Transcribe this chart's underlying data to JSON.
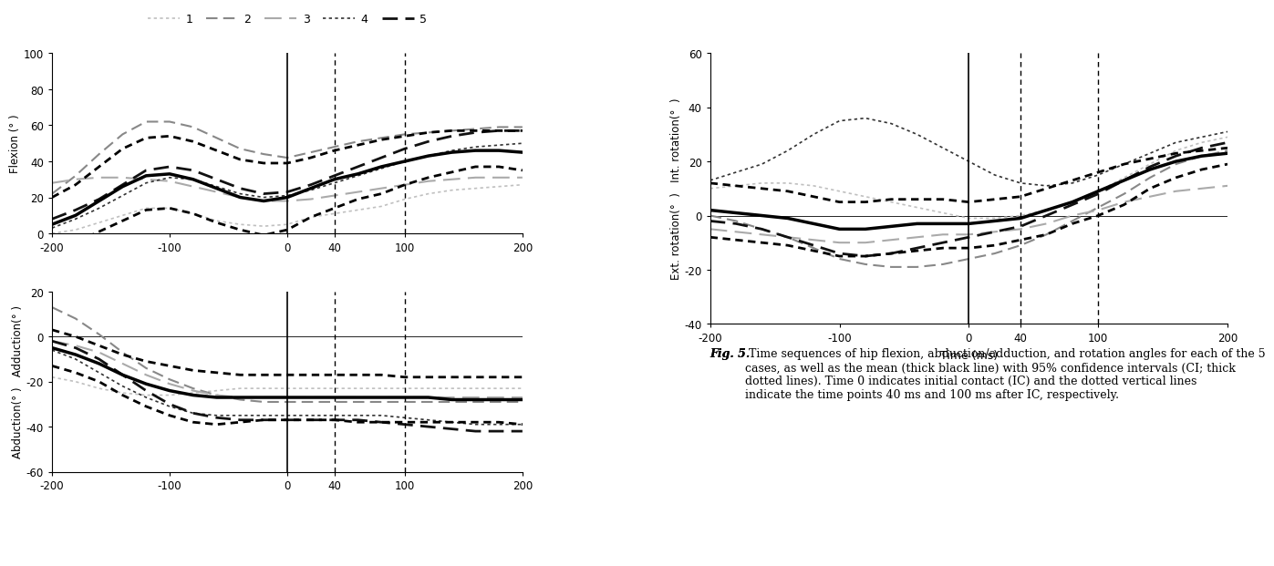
{
  "x": [
    -200,
    -180,
    -160,
    -140,
    -120,
    -100,
    -80,
    -60,
    -40,
    -20,
    0,
    20,
    40,
    60,
    80,
    100,
    120,
    140,
    160,
    180,
    200
  ],
  "flexion_mean": [
    5,
    10,
    18,
    26,
    32,
    33,
    30,
    25,
    20,
    18,
    20,
    25,
    30,
    33,
    37,
    40,
    43,
    45,
    46,
    46,
    45
  ],
  "flexion_ci_upper": [
    20,
    27,
    37,
    47,
    53,
    54,
    51,
    46,
    41,
    39,
    39,
    42,
    46,
    49,
    52,
    54,
    56,
    57,
    57,
    57,
    57
  ],
  "flexion_ci_lower": [
    -10,
    -5,
    1,
    7,
    13,
    14,
    11,
    6,
    2,
    -1,
    2,
    9,
    14,
    19,
    22,
    27,
    31,
    34,
    37,
    37,
    35
  ],
  "flexion_case1": [
    0,
    2,
    6,
    10,
    14,
    14,
    11,
    7,
    5,
    4,
    5,
    9,
    11,
    13,
    15,
    19,
    22,
    24,
    25,
    26,
    27
  ],
  "flexion_case2": [
    22,
    32,
    44,
    55,
    62,
    62,
    59,
    53,
    47,
    44,
    42,
    45,
    48,
    51,
    53,
    55,
    56,
    57,
    58,
    59,
    59
  ],
  "flexion_case3": [
    28,
    30,
    31,
    31,
    30,
    29,
    26,
    23,
    20,
    18,
    18,
    19,
    21,
    23,
    25,
    27,
    29,
    30,
    31,
    31,
    31
  ],
  "flexion_case4": [
    3,
    8,
    14,
    21,
    28,
    31,
    30,
    26,
    22,
    20,
    21,
    24,
    28,
    32,
    36,
    40,
    43,
    46,
    48,
    49,
    50
  ],
  "flexion_case5": [
    8,
    13,
    19,
    27,
    35,
    37,
    35,
    30,
    25,
    22,
    23,
    27,
    32,
    37,
    42,
    47,
    51,
    54,
    56,
    57,
    57
  ],
  "abduction_mean": [
    -5,
    -8,
    -12,
    -17,
    -21,
    -24,
    -26,
    -27,
    -27,
    -27,
    -27,
    -27,
    -27,
    -27,
    -27,
    -27,
    -27,
    -28,
    -28,
    -28,
    -28
  ],
  "abduction_ci_upper": [
    3,
    0,
    -4,
    -8,
    -11,
    -13,
    -15,
    -16,
    -17,
    -17,
    -17,
    -17,
    -17,
    -17,
    -17,
    -18,
    -18,
    -18,
    -18,
    -18,
    -18
  ],
  "abduction_ci_lower": [
    -13,
    -16,
    -20,
    -26,
    -31,
    -35,
    -38,
    -39,
    -38,
    -37,
    -37,
    -37,
    -37,
    -38,
    -38,
    -38,
    -38,
    -38,
    -38,
    -38,
    -39
  ],
  "abduction_case1": [
    -18,
    -20,
    -23,
    -25,
    -26,
    -26,
    -25,
    -24,
    -23,
    -23,
    -23,
    -23,
    -23,
    -23,
    -23,
    -23,
    -23,
    -23,
    -23,
    -23,
    -23
  ],
  "abduction_case2": [
    13,
    8,
    1,
    -7,
    -14,
    -19,
    -23,
    -26,
    -28,
    -29,
    -29,
    -29,
    -29,
    -29,
    -29,
    -29,
    -29,
    -29,
    -29,
    -29,
    -29
  ],
  "abduction_case3": [
    -2,
    -4,
    -7,
    -12,
    -17,
    -21,
    -24,
    -26,
    -27,
    -27,
    -27,
    -27,
    -27,
    -27,
    -27,
    -27,
    -27,
    -27,
    -27,
    -27,
    -27
  ],
  "abduction_case4": [
    -6,
    -10,
    -16,
    -22,
    -27,
    -31,
    -34,
    -35,
    -35,
    -35,
    -35,
    -35,
    -35,
    -35,
    -35,
    -36,
    -37,
    -38,
    -39,
    -39,
    -39
  ],
  "abduction_case5": [
    -2,
    -5,
    -10,
    -17,
    -24,
    -30,
    -34,
    -36,
    -37,
    -37,
    -37,
    -37,
    -37,
    -37,
    -38,
    -39,
    -40,
    -41,
    -42,
    -42,
    -42
  ],
  "rotation_mean": [
    2,
    1,
    0,
    -1,
    -3,
    -5,
    -5,
    -4,
    -3,
    -3,
    -3,
    -2,
    -1,
    2,
    5,
    9,
    13,
    17,
    20,
    22,
    23
  ],
  "rotation_ci_upper": [
    12,
    11,
    10,
    9,
    7,
    5,
    5,
    6,
    6,
    6,
    5,
    6,
    7,
    10,
    13,
    16,
    19,
    21,
    23,
    24,
    25
  ],
  "rotation_ci_lower": [
    -8,
    -9,
    -10,
    -11,
    -13,
    -15,
    -15,
    -14,
    -13,
    -12,
    -12,
    -11,
    -9,
    -7,
    -3,
    0,
    4,
    10,
    14,
    17,
    19
  ],
  "rotation_case1": [
    10,
    11,
    12,
    12,
    11,
    9,
    7,
    5,
    3,
    1,
    -1,
    -1,
    0,
    2,
    5,
    9,
    14,
    19,
    24,
    27,
    29
  ],
  "rotation_case2": [
    0,
    -2,
    -5,
    -8,
    -12,
    -16,
    -18,
    -19,
    -19,
    -18,
    -16,
    -14,
    -11,
    -7,
    -2,
    3,
    8,
    14,
    19,
    22,
    24
  ],
  "rotation_case3": [
    -5,
    -6,
    -7,
    -8,
    -9,
    -10,
    -10,
    -9,
    -8,
    -7,
    -7,
    -6,
    -5,
    -3,
    0,
    2,
    5,
    7,
    9,
    10,
    11
  ],
  "rotation_case4": [
    13,
    16,
    19,
    24,
    30,
    35,
    36,
    34,
    30,
    25,
    20,
    15,
    12,
    11,
    12,
    15,
    19,
    23,
    27,
    29,
    31
  ],
  "rotation_case5": [
    -2,
    -3,
    -5,
    -8,
    -11,
    -14,
    -15,
    -14,
    -12,
    -10,
    -8,
    -6,
    -4,
    0,
    4,
    8,
    13,
    18,
    22,
    25,
    27
  ],
  "xlim": [
    -200,
    200
  ],
  "flexion_ylim": [
    0,
    100
  ],
  "abduction_ylim": [
    -60,
    20
  ],
  "rotation_ylim": [
    -40,
    60
  ],
  "xticks": [
    -200,
    -100,
    0,
    40,
    100,
    200
  ],
  "xlabel": "Time (ms)",
  "flexion_ylabel": "Flexion (° )",
  "abduction_ylabel": "Abduction(° )   Adduction(° )",
  "rotation_ylabel": "Ext. rotation(°  )   Int. rotation(°  )",
  "fig_caption_bold": "Fig. 5.",
  "fig_caption_normal": " Time sequences of hip flexion, abduction/adduction, and rotation angles for each of the 5 cases, as well as the mean (thick black line) with 95% confidence intervals (CI; thick dotted lines). Time 0 indicates initial contact (IC) and the dotted vertical lines indicate the time points 40 ms and 100 ms after IC, respectively."
}
